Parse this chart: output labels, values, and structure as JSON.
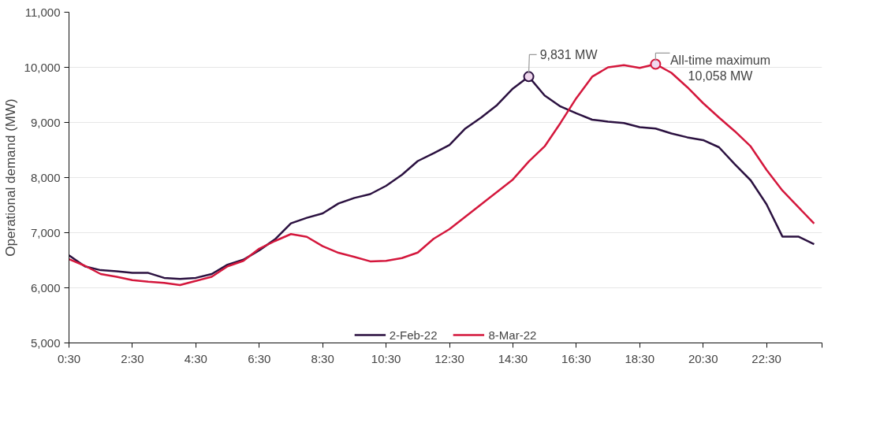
{
  "chart_data": {
    "type": "line",
    "ylabel": "Operational demand (MW)",
    "x": [
      0.5,
      1,
      1.5,
      2,
      2.5,
      3,
      3.5,
      4,
      4.5,
      5,
      5.5,
      6,
      6.5,
      7,
      7.5,
      8,
      8.5,
      9,
      9.5,
      10,
      10.5,
      11,
      11.5,
      12,
      12.5,
      13,
      13.5,
      14,
      14.5,
      15,
      15.5,
      16,
      16.5,
      17,
      17.5,
      18,
      18.5,
      19,
      19.5,
      20,
      20.5,
      21,
      21.5,
      22,
      22.5,
      23,
      23.5,
      24
    ],
    "series": [
      {
        "name": "2-Feb-22",
        "color": "#2b1140",
        "values": [
          6590,
          6390,
          6320,
          6300,
          6270,
          6270,
          6180,
          6160,
          6180,
          6250,
          6420,
          6510,
          6680,
          6880,
          7170,
          7270,
          7350,
          7530,
          7630,
          7700,
          7850,
          8050,
          8300,
          8440,
          8590,
          8890,
          9090,
          9315,
          9615,
          9831,
          9490,
          9290,
          9165,
          9050,
          9015,
          8990,
          8915,
          8890,
          8800,
          8730,
          8680,
          8550,
          8240,
          7950,
          7515,
          6930,
          6930,
          6790
        ]
      },
      {
        "name": "8-Mar-22",
        "color": "#d4173c",
        "values": [
          6520,
          6400,
          6250,
          6200,
          6140,
          6110,
          6090,
          6050,
          6125,
          6200,
          6390,
          6490,
          6710,
          6850,
          6975,
          6925,
          6755,
          6635,
          6560,
          6480,
          6490,
          6540,
          6640,
          6890,
          7065,
          7290,
          7515,
          7740,
          7965,
          8290,
          8565,
          8990,
          9440,
          9830,
          10000,
          10040,
          9990,
          10058,
          9900,
          9640,
          9350,
          9090,
          8840,
          8565,
          8140,
          7765,
          7465,
          7165
        ]
      }
    ],
    "xlim": [
      0.5,
      24.25
    ],
    "xticks": [
      {
        "value": 0.5,
        "label": "0:30"
      },
      {
        "value": 2.5,
        "label": "2:30"
      },
      {
        "value": 4.5,
        "label": "4:30"
      },
      {
        "value": 6.5,
        "label": "6:30"
      },
      {
        "value": 8.5,
        "label": "8:30"
      },
      {
        "value": 10.5,
        "label": "10:30"
      },
      {
        "value": 12.5,
        "label": "12:30"
      },
      {
        "value": 14.5,
        "label": "14:30"
      },
      {
        "value": 16.5,
        "label": "16:30"
      },
      {
        "value": 18.5,
        "label": "18:30"
      },
      {
        "value": 20.5,
        "label": "20:30"
      },
      {
        "value": 22.5,
        "label": "22:30"
      },
      {
        "value": 24.25,
        "label": null
      }
    ],
    "ylim": [
      5000,
      11000
    ],
    "yticks": [
      {
        "value": 5000,
        "label": "5,000"
      },
      {
        "value": 6000,
        "label": "6,000"
      },
      {
        "value": 7000,
        "label": "7,000"
      },
      {
        "value": 8000,
        "label": "8,000"
      },
      {
        "value": 9000,
        "label": "9,000"
      },
      {
        "value": 10000,
        "label": "10,000"
      },
      {
        "value": 11000,
        "label": "11,000"
      }
    ],
    "annotations": [
      {
        "text": "9,831 MW",
        "x": 15,
        "y": 9831
      },
      {
        "text": "All-time maximum\n10,058 MW",
        "x": 19,
        "y": 10058
      }
    ],
    "grid": "y",
    "legend": "bottom",
    "marker": "none",
    "line_style": "solid"
  }
}
